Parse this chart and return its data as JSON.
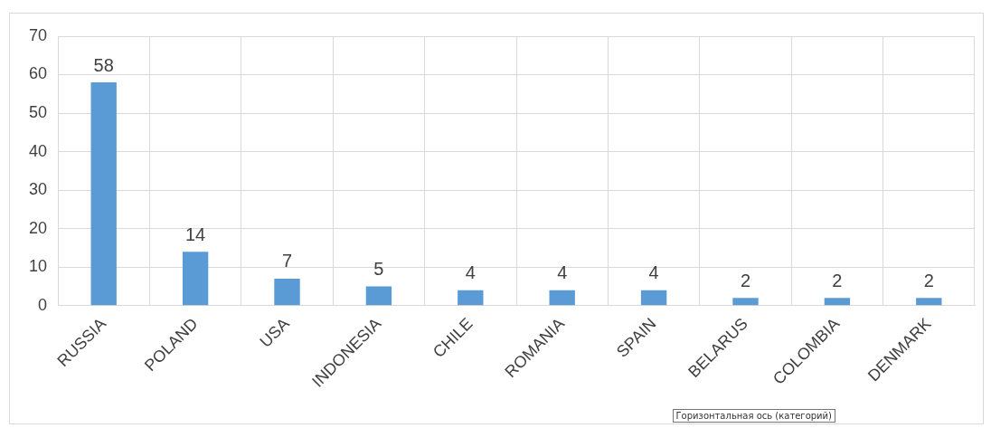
{
  "chart_data": {
    "type": "bar",
    "categories": [
      "RUSSIA",
      "POLAND",
      "USA",
      "INDONESIA",
      "CHILE",
      "ROMANIA",
      "SPAIN",
      "BELARUS",
      "COLOMBIA",
      "DENMARK"
    ],
    "values": [
      58,
      14,
      7,
      5,
      4,
      4,
      4,
      2,
      2,
      2
    ],
    "color": "#5b9bd5",
    "ylim": [
      0,
      70
    ],
    "yticks": [
      0,
      10,
      20,
      30,
      40,
      50,
      60,
      70
    ],
    "grid": true,
    "data_labels": true,
    "annotations": [
      "Горизонтальная ось (категорий)"
    ]
  }
}
